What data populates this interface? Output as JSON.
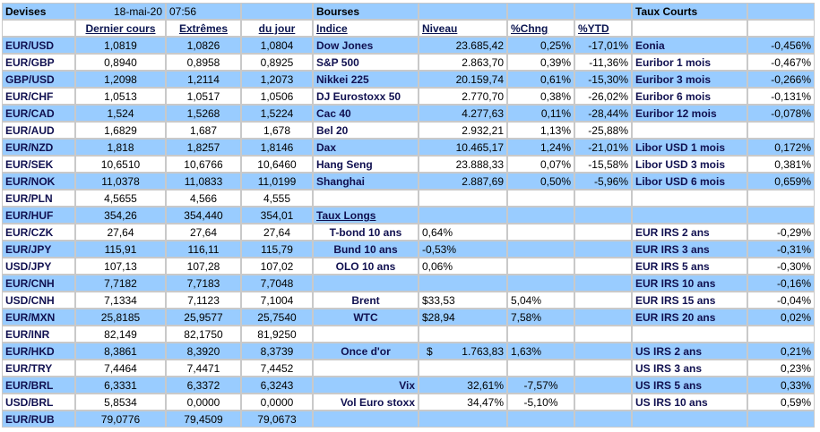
{
  "header": {
    "devises": "Devises",
    "date": "18-mai-20",
    "time": "07:56",
    "bourses": "Bourses",
    "taux_courts": "Taux Courts"
  },
  "columns": {
    "dernier_cours": "Dernier cours",
    "extremes": "Extrêmes",
    "du_jour": "du jour",
    "indice": "Indice",
    "niveau": "Niveau",
    "chng": "%Chng",
    "ytd": "%YTD"
  },
  "taux_longs_label": "Taux Longs",
  "rows": [
    {
      "pair": "EUR/USD",
      "last": "1,0819",
      "high": "1,0826",
      "low": "1,0804",
      "idx": "Dow Jones",
      "niv": "23.685,42",
      "chg": "0,25%",
      "ytd": "-17,01%",
      "rate": "Eonia",
      "rval": "-0,456%"
    },
    {
      "pair": "EUR/GBP",
      "last": "0,8940",
      "high": "0,8958",
      "low": "0,8925",
      "idx": "S&P 500",
      "niv": "2.863,70",
      "chg": "0,39%",
      "ytd": "-11,36%",
      "rate": "Euribor 1 mois",
      "rval": "-0,467%"
    },
    {
      "pair": "GBP/USD",
      "last": "1,2098",
      "high": "1,2114",
      "low": "1,2073",
      "idx": "Nikkei 225",
      "niv": "20.159,74",
      "chg": "0,61%",
      "ytd": "-15,30%",
      "rate": "Euribor 3 mois",
      "rval": "-0,266%"
    },
    {
      "pair": "EUR/CHF",
      "last": "1,0513",
      "high": "1,0517",
      "low": "1,0506",
      "idx": "DJ Eurostoxx 50",
      "niv": "2.770,70",
      "chg": "0,38%",
      "ytd": "-26,02%",
      "rate": "Euribor 6 mois",
      "rval": "-0,131%"
    },
    {
      "pair": "EUR/CAD",
      "last": "1,524",
      "high": "1,5268",
      "low": "1,5224",
      "idx": "Cac 40",
      "niv": "4.277,63",
      "chg": "0,11%",
      "ytd": "-28,44%",
      "rate": "Euribor 12 mois",
      "rval": "-0,078%"
    },
    {
      "pair": "EUR/AUD",
      "last": "1,6829",
      "high": "1,687",
      "low": "1,678",
      "idx": "Bel 20",
      "niv": "2.932,21",
      "chg": "1,13%",
      "ytd": "-25,88%",
      "rate": "",
      "rval": ""
    },
    {
      "pair": "EUR/NZD",
      "last": "1,818",
      "high": "1,8257",
      "low": "1,8146",
      "idx": "Dax",
      "niv": "10.465,17",
      "chg": "1,24%",
      "ytd": "-21,01%",
      "rate": "Libor USD 1 mois",
      "rval": "0,172%"
    },
    {
      "pair": "EUR/SEK",
      "last": "10,6510",
      "high": "10,6766",
      "low": "10,6460",
      "idx": "Hang Seng",
      "niv": "23.888,33",
      "chg": "0,07%",
      "ytd": "-15,58%",
      "rate": "Libor USD 3 mois",
      "rval": "0,381%"
    },
    {
      "pair": "EUR/NOK",
      "last": "11,0378",
      "high": "11,0833",
      "low": "11,0199",
      "idx": "Shanghai",
      "niv": "2.887,69",
      "chg": "0,50%",
      "ytd": "-5,96%",
      "rate": "Libor USD 6 mois",
      "rval": "0,659%"
    },
    {
      "pair": "EUR/PLN",
      "last": "4,5655",
      "high": "4,566",
      "low": "4,555",
      "idx": "",
      "niv": "",
      "chg": "",
      "ytd": "",
      "rate": "",
      "rval": ""
    },
    {
      "pair": "EUR/HUF",
      "last": "354,26",
      "high": "354,440",
      "low": "354,01",
      "idx": "",
      "niv": "",
      "chg": "",
      "ytd": "",
      "rate": "",
      "rval": ""
    },
    {
      "pair": "EUR/CZK",
      "last": "27,64",
      "high": "27,64",
      "low": "27,64",
      "idx": "T-bond 10 ans",
      "niv": "0,64%",
      "chg": "",
      "ytd": "",
      "rate": "EUR IRS 2 ans",
      "rval": "-0,29%"
    },
    {
      "pair": "EUR/JPY",
      "last": "115,91",
      "high": "116,11",
      "low": "115,79",
      "idx": "Bund 10 ans",
      "niv": "-0,53%",
      "chg": "",
      "ytd": "",
      "rate": "EUR IRS 3 ans",
      "rval": "-0,31%"
    },
    {
      "pair": "USD/JPY",
      "last": "107,13",
      "high": "107,28",
      "low": "107,02",
      "idx": "OLO 10 ans",
      "niv": "0,06%",
      "chg": "",
      "ytd": "",
      "rate": "EUR IRS 5 ans",
      "rval": "-0,30%"
    },
    {
      "pair": "EUR/CNH",
      "last": "7,7182",
      "high": "7,7183",
      "low": "7,7048",
      "idx": "",
      "niv": "",
      "chg": "",
      "ytd": "",
      "rate": "EUR IRS 10 ans",
      "rval": "-0,16%"
    },
    {
      "pair": "USD/CNH",
      "last": "7,1334",
      "high": "7,1123",
      "low": "7,1004",
      "idx": "Brent",
      "niv": "$33,53",
      "chg": "5,04%",
      "ytd": "",
      "rate": "EUR IRS 15 ans",
      "rval": "-0,04%"
    },
    {
      "pair": "EUR/MXN",
      "last": "25,8185",
      "high": "25,9577",
      "low": "25,7540",
      "idx": "WTC",
      "niv": "$28,94",
      "chg": "7,58%",
      "ytd": "",
      "rate": "EUR IRS 20 ans",
      "rval": "0,02%"
    },
    {
      "pair": "EUR/INR",
      "last": "82,149",
      "high": "82,1750",
      "low": "81,9250",
      "idx": "",
      "niv": "",
      "chg": "",
      "ytd": "",
      "rate": "",
      "rval": ""
    },
    {
      "pair": "EUR/HKD",
      "last": "8,3861",
      "high": "8,3920",
      "low": "8,3739",
      "idx": "Once d'or",
      "niv_sym": "$",
      "niv": "1.763,83",
      "chg": "1,63%",
      "ytd": "",
      "rate": "US IRS 2 ans",
      "rval": "0,21%"
    },
    {
      "pair": "EUR/TRY",
      "last": "7,4464",
      "high": "7,4471",
      "low": "7,4452",
      "idx": "",
      "niv": "",
      "chg": "",
      "ytd": "",
      "rate": "US IRS 3 ans",
      "rval": "0,23%"
    },
    {
      "pair": "EUR/BRL",
      "last": "6,3331",
      "high": "6,3372",
      "low": "6,3243",
      "idx": "Vix",
      "niv": "32,61%",
      "chg": "-7,57%",
      "ytd": "",
      "rate": "US IRS 5 ans",
      "rval": "0,33%"
    },
    {
      "pair": "USD/BRL",
      "last": "5,8534",
      "high": "0,0000",
      "low": "0,0000",
      "idx": "Vol Euro stoxx",
      "niv": "34,47%",
      "chg": "-5,10%",
      "ytd": "",
      "rate": "US IRS 10 ans",
      "rval": "0,59%"
    },
    {
      "pair": "EUR/RUB",
      "last": "79,0776",
      "high": "79,4509",
      "low": "79,0673",
      "idx": "",
      "niv": "",
      "chg": "",
      "ytd": "",
      "rate": "",
      "rval": ""
    }
  ]
}
